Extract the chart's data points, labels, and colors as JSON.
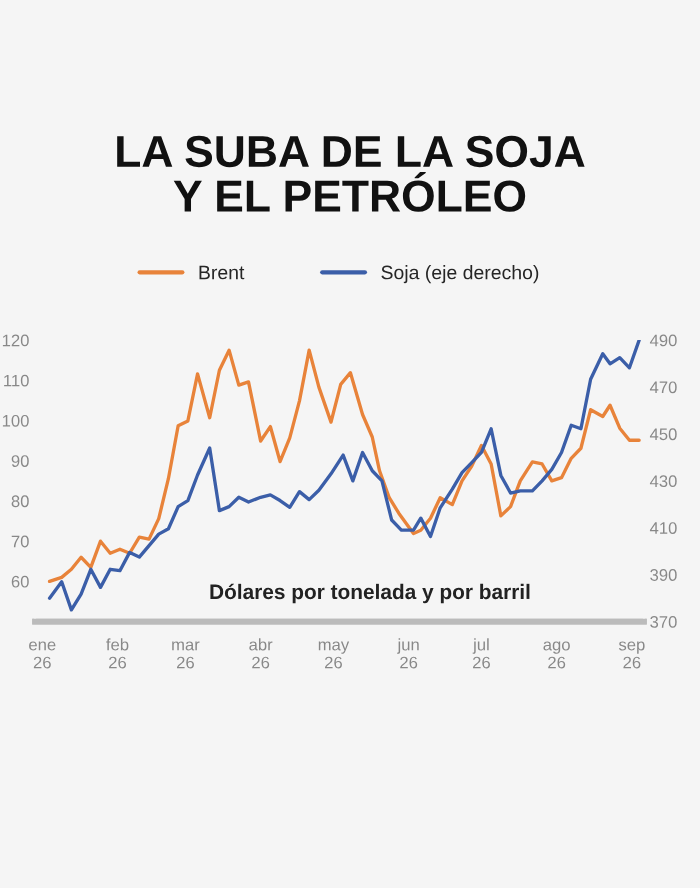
{
  "chart_data": {
    "type": "line",
    "title": "LA SUBA DE LA SOJA\nY EL PETRÓLEO",
    "annotations": [
      "Dólares por tonelada y por barril"
    ],
    "legend": "top",
    "grid": false,
    "marker": "none",
    "line_style": "solid",
    "xlim": [
      "2025-12-29",
      "2026-09-06"
    ],
    "xticks": [
      {
        "value": "2026-01-01",
        "label": "ene\n26"
      },
      {
        "value": "2026-02-01",
        "label": "feb\n26"
      },
      {
        "value": "2026-03-01",
        "label": "mar\n26"
      },
      {
        "value": "2026-04-01",
        "label": "abr\n26"
      },
      {
        "value": "2026-05-01",
        "label": "may\n26"
      },
      {
        "value": "2026-06-01",
        "label": "jun\n26"
      },
      {
        "value": "2026-07-01",
        "label": "jul\n26"
      },
      {
        "value": "2026-08-01",
        "label": "ago\n26"
      },
      {
        "value": "2026-09-01",
        "label": "sep\n26"
      }
    ],
    "ylim": [
      50,
      120
    ],
    "yticks": [
      60,
      70,
      80,
      90,
      100,
      110,
      120
    ],
    "y2lim": [
      370,
      490
    ],
    "y2ticks": [
      370,
      390,
      410,
      430,
      450,
      470,
      490
    ],
    "series": [
      {
        "name": "Brent",
        "color": "#e8833a",
        "x": [
          "2026-01-04",
          "2026-01-09",
          "2026-01-13",
          "2026-01-17",
          "2026-01-21",
          "2026-01-25",
          "2026-01-29",
          "2026-02-02",
          "2026-02-06",
          "2026-02-10",
          "2026-02-14",
          "2026-02-18",
          "2026-02-22",
          "2026-02-26",
          "2026-03-02",
          "2026-03-06",
          "2026-03-11",
          "2026-03-15",
          "2026-03-19",
          "2026-03-23",
          "2026-03-27",
          "2026-04-01",
          "2026-04-05",
          "2026-04-09",
          "2026-04-13",
          "2026-04-17",
          "2026-04-21",
          "2026-04-25",
          "2026-04-30",
          "2026-05-04",
          "2026-05-08",
          "2026-05-13",
          "2026-05-17",
          "2026-05-20",
          "2026-05-24",
          "2026-05-28",
          "2026-06-03",
          "2026-06-06",
          "2026-06-10",
          "2026-06-14",
          "2026-06-19",
          "2026-06-23",
          "2026-06-27",
          "2026-07-01",
          "2026-07-05",
          "2026-07-09",
          "2026-07-13",
          "2026-07-17",
          "2026-07-22",
          "2026-07-26",
          "2026-07-30",
          "2026-08-03",
          "2026-08-07",
          "2026-08-11",
          "2026-08-15",
          "2026-08-20",
          "2026-08-23",
          "2026-08-27",
          "2026-08-31",
          "2026-09-04"
        ],
        "values": [
          60,
          61,
          63,
          66,
          63.5,
          70,
          67,
          68,
          67,
          71,
          70.5,
          75.6,
          85.6,
          98.7,
          99.9,
          111.6,
          100.7,
          112.5,
          117.5,
          108.8,
          109.6,
          94.9,
          98.5,
          89.8,
          95.7,
          104.9,
          117.5,
          108.3,
          99.6,
          109,
          111.9,
          101.5,
          95.9,
          87.5,
          80.8,
          76.9,
          71.9,
          72.7,
          75.7,
          80.8,
          79.1,
          85,
          88.7,
          93.8,
          89.2,
          76.3,
          78.6,
          85,
          89.7,
          89.2,
          85,
          85.8,
          90.6,
          93.1,
          102.7,
          101,
          103.8,
          98.1,
          95.1,
          95.1
        ]
      },
      {
        "name": "Soja (eje derecho)",
        "color": "#3b5ea8",
        "axis": "y2",
        "x": [
          "2026-01-04",
          "2026-01-09",
          "2026-01-13",
          "2026-01-17",
          "2026-01-21",
          "2026-01-25",
          "2026-01-29",
          "2026-02-02",
          "2026-02-06",
          "2026-02-10",
          "2026-02-14",
          "2026-02-18",
          "2026-02-22",
          "2026-02-26",
          "2026-03-02",
          "2026-03-06",
          "2026-03-11",
          "2026-03-15",
          "2026-03-19",
          "2026-03-23",
          "2026-03-27",
          "2026-04-01",
          "2026-04-05",
          "2026-04-09",
          "2026-04-13",
          "2026-04-17",
          "2026-04-21",
          "2026-04-25",
          "2026-04-30",
          "2026-05-05",
          "2026-05-09",
          "2026-05-13",
          "2026-05-17",
          "2026-05-21",
          "2026-05-25",
          "2026-05-29",
          "2026-06-03",
          "2026-06-06",
          "2026-06-10",
          "2026-06-14",
          "2026-06-19",
          "2026-06-23",
          "2026-06-27",
          "2026-07-01",
          "2026-07-05",
          "2026-07-09",
          "2026-07-13",
          "2026-07-17",
          "2026-07-22",
          "2026-07-26",
          "2026-07-30",
          "2026-08-03",
          "2026-08-07",
          "2026-08-11",
          "2026-08-15",
          "2026-08-20",
          "2026-08-23",
          "2026-08-27",
          "2026-08-31",
          "2026-09-04"
        ],
        "values": [
          380,
          387,
          375,
          381.7,
          392.3,
          384.6,
          392.3,
          391.7,
          399.5,
          397.5,
          402.4,
          407.3,
          409.6,
          419,
          421.6,
          432.5,
          444,
          417.3,
          419,
          423,
          421,
          423,
          424,
          421.6,
          418.7,
          425.4,
          422,
          426,
          433,
          441,
          430,
          442.1,
          434.3,
          430,
          413.3,
          409,
          409,
          414.1,
          406.3,
          418.5,
          426.5,
          433.5,
          437.8,
          442.1,
          452.2,
          432.3,
          424.8,
          425.7,
          425.7,
          430,
          434.9,
          442.1,
          453.7,
          452.2,
          473.3,
          484.2,
          479.9,
          482.5,
          478.2,
          490
        ]
      }
    ]
  }
}
